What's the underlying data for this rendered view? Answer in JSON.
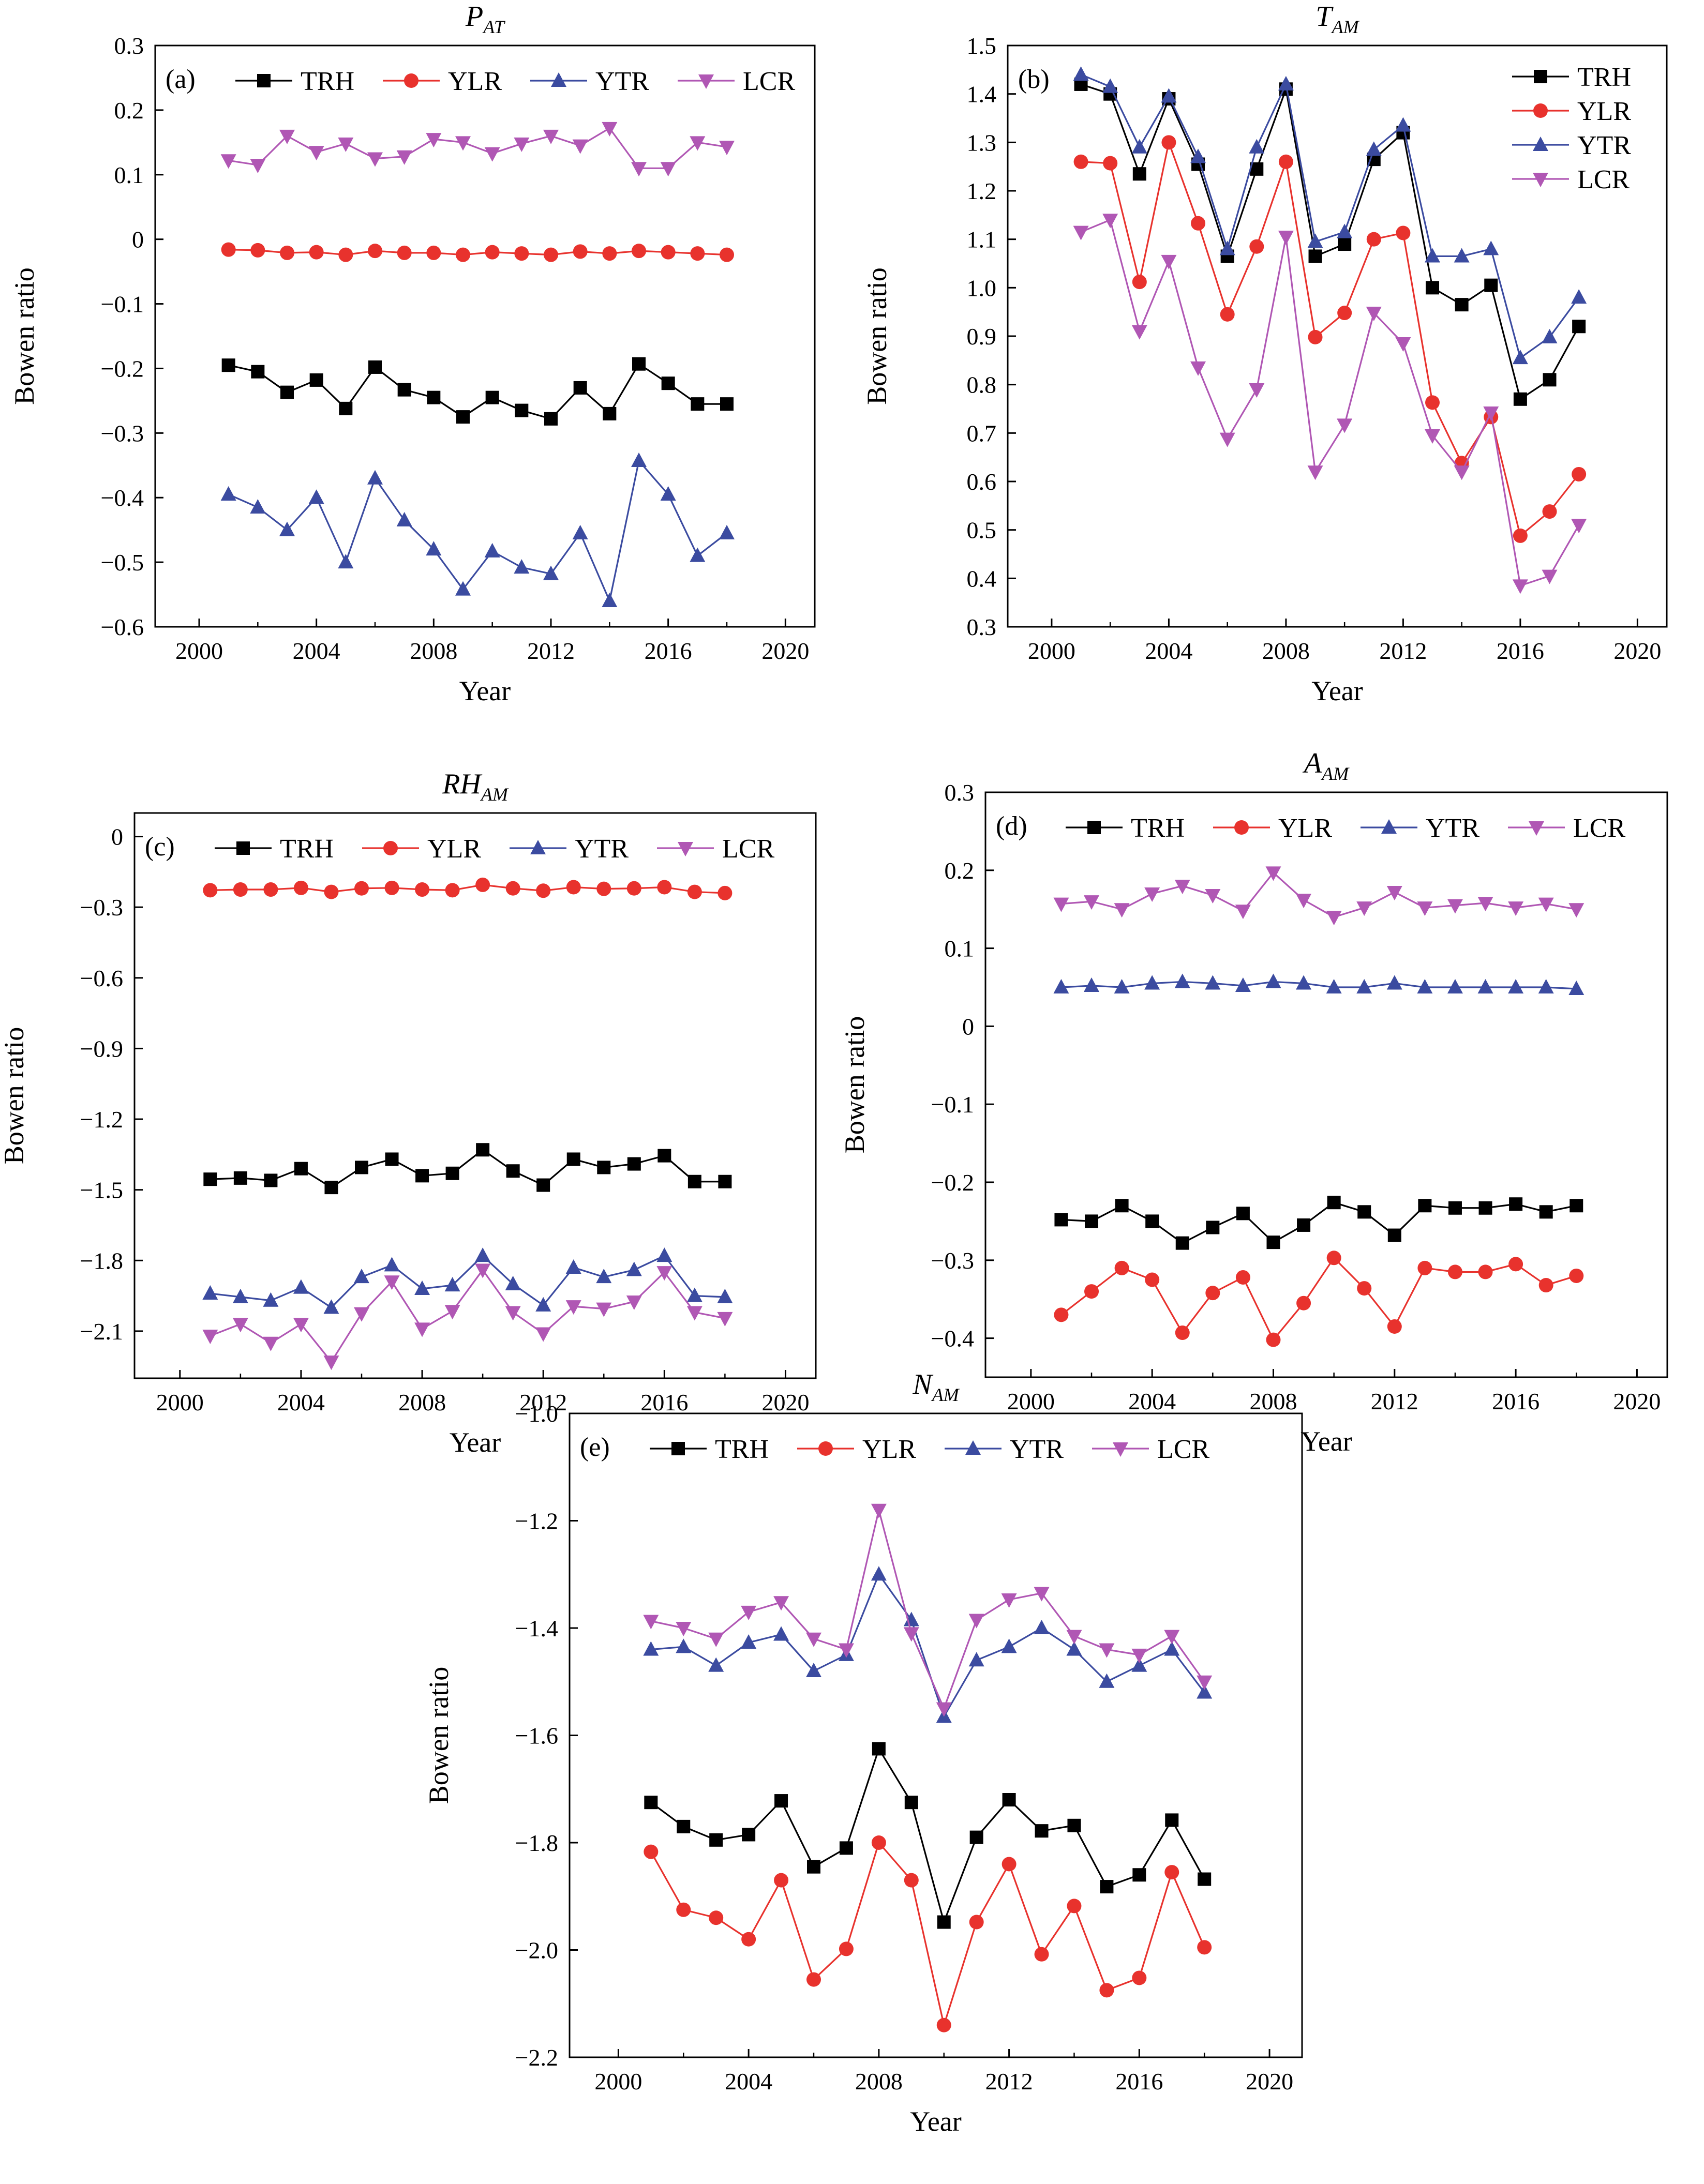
{
  "styles": {
    "TRH": {
      "color": "#000000",
      "marker": "square"
    },
    "YLR": {
      "color": "#e8322d",
      "marker": "circle"
    },
    "YTR": {
      "color": "#3b4ba0",
      "marker": "triangle-up"
    },
    "LCR": {
      "color": "#b057b4",
      "marker": "triangle-down"
    }
  },
  "chart_data": [
    {
      "type": "line",
      "panel_label": "(a)",
      "title_main": "P",
      "title_sub": "AT",
      "xlabel": "Year",
      "ylabel": "Bowen ratio",
      "xlim": [
        1998.5,
        2021
      ],
      "ylim": [
        -0.6,
        0.3
      ],
      "xticks": [
        2000,
        2004,
        2008,
        2012,
        2016,
        2020
      ],
      "yticks": [
        -0.6,
        -0.5,
        -0.4,
        -0.3,
        -0.2,
        -0.1,
        0,
        0.1,
        0.2,
        0.3
      ],
      "ytick_labels": [
        "−0.6",
        "−0.5",
        "−0.4",
        "−0.3",
        "−0.2",
        "−0.1",
        "0",
        "0.1",
        "0.2",
        "0.3"
      ],
      "legend_layout": "row",
      "legend_position": "top",
      "x": [
        2001,
        2002,
        2003,
        2004,
        2005,
        2006,
        2007,
        2008,
        2009,
        2010,
        2011,
        2012,
        2013,
        2014,
        2015,
        2016,
        2017,
        2018
      ],
      "series": [
        {
          "name": "TRH",
          "values": [
            -0.195,
            -0.205,
            -0.237,
            -0.218,
            -0.262,
            -0.198,
            -0.233,
            -0.245,
            -0.275,
            -0.245,
            -0.265,
            -0.278,
            -0.23,
            -0.27,
            -0.193,
            -0.223,
            -0.255,
            -0.255
          ]
        },
        {
          "name": "YLR",
          "values": [
            -0.016,
            -0.017,
            -0.021,
            -0.02,
            -0.024,
            -0.018,
            -0.021,
            -0.021,
            -0.024,
            -0.02,
            -0.022,
            -0.024,
            -0.019,
            -0.022,
            -0.018,
            -0.02,
            -0.022,
            -0.024
          ]
        },
        {
          "name": "YTR",
          "values": [
            -0.395,
            -0.415,
            -0.45,
            -0.4,
            -0.5,
            -0.37,
            -0.435,
            -0.48,
            -0.542,
            -0.483,
            -0.508,
            -0.518,
            -0.455,
            -0.56,
            -0.343,
            -0.395,
            -0.49,
            -0.455
          ]
        },
        {
          "name": "LCR",
          "values": [
            0.122,
            0.115,
            0.16,
            0.135,
            0.148,
            0.125,
            0.128,
            0.155,
            0.15,
            0.133,
            0.148,
            0.16,
            0.145,
            0.172,
            0.11,
            0.11,
            0.15,
            0.143
          ]
        }
      ]
    },
    {
      "type": "line",
      "panel_label": "(b)",
      "title_main": "T",
      "title_sub": "AM",
      "xlabel": "Year",
      "ylabel": "Bowen ratio",
      "xlim": [
        1998.5,
        2021
      ],
      "ylim": [
        0.3,
        1.5
      ],
      "xticks": [
        2000,
        2004,
        2008,
        2012,
        2016,
        2020
      ],
      "yticks": [
        0.3,
        0.4,
        0.5,
        0.6,
        0.7,
        0.8,
        0.9,
        1.0,
        1.1,
        1.2,
        1.3,
        1.4,
        1.5
      ],
      "ytick_labels": [
        "0.3",
        "0.4",
        "0.5",
        "0.6",
        "0.7",
        "0.8",
        "0.9",
        "1.0",
        "1.1",
        "1.2",
        "1.3",
        "1.4",
        "1.5"
      ],
      "legend_layout": "column",
      "legend_position": "top-right",
      "x": [
        2001,
        2002,
        2003,
        2004,
        2005,
        2006,
        2007,
        2008,
        2009,
        2010,
        2011,
        2012,
        2013,
        2014,
        2015,
        2016,
        2017,
        2018
      ],
      "series": [
        {
          "name": "TRH",
          "values": [
            1.42,
            1.4,
            1.235,
            1.39,
            1.255,
            1.065,
            1.245,
            1.41,
            1.065,
            1.09,
            1.265,
            1.32,
            1.0,
            0.965,
            1.005,
            0.77,
            0.81,
            0.92
          ]
        },
        {
          "name": "YLR",
          "values": [
            1.26,
            1.257,
            1.012,
            1.3,
            1.133,
            0.945,
            1.085,
            1.26,
            0.898,
            0.948,
            1.1,
            1.113,
            0.763,
            0.638,
            0.733,
            0.488,
            0.538,
            0.615
          ]
        },
        {
          "name": "YTR",
          "values": [
            1.44,
            1.415,
            1.29,
            1.395,
            1.27,
            1.08,
            1.29,
            1.42,
            1.095,
            1.115,
            1.285,
            1.335,
            1.065,
            1.065,
            1.08,
            0.855,
            0.898,
            0.98
          ]
        },
        {
          "name": "LCR",
          "values": [
            1.115,
            1.14,
            0.91,
            1.055,
            0.835,
            0.688,
            0.79,
            1.105,
            0.62,
            0.717,
            0.948,
            0.885,
            0.695,
            0.62,
            0.742,
            0.385,
            0.405,
            0.51
          ]
        }
      ]
    },
    {
      "type": "line",
      "panel_label": "(c)",
      "title_main": "RH",
      "title_sub": "AM",
      "xlabel": "Year",
      "ylabel": "Bowen ratio",
      "xlim": [
        1998.5,
        2021
      ],
      "ylim": [
        -2.3,
        0.1
      ],
      "xticks": [
        2000,
        2004,
        2008,
        2012,
        2016,
        2020
      ],
      "yticks": [
        0,
        -0.3,
        -0.6,
        -0.9,
        -1.2,
        -1.5,
        -1.8,
        -2.1
      ],
      "ytick_labels": [
        "0",
        "−0.3",
        "−0.6",
        "−0.9",
        "−1.2",
        "−1.5",
        "−1.8",
        "−2.1"
      ],
      "legend_layout": "row",
      "legend_position": "top",
      "x": [
        2001,
        2002,
        2003,
        2004,
        2005,
        2006,
        2007,
        2008,
        2009,
        2010,
        2011,
        2012,
        2013,
        2014,
        2015,
        2016,
        2017,
        2018
      ],
      "series": [
        {
          "name": "TRH",
          "values": [
            -1.455,
            -1.45,
            -1.46,
            -1.41,
            -1.49,
            -1.405,
            -1.37,
            -1.44,
            -1.43,
            -1.33,
            -1.42,
            -1.48,
            -1.37,
            -1.405,
            -1.39,
            -1.355,
            -1.465,
            -1.465
          ]
        },
        {
          "name": "YLR",
          "values": [
            -0.228,
            -0.225,
            -0.225,
            -0.218,
            -0.235,
            -0.22,
            -0.218,
            -0.225,
            -0.228,
            -0.205,
            -0.22,
            -0.23,
            -0.215,
            -0.222,
            -0.22,
            -0.215,
            -0.235,
            -0.24
          ]
        },
        {
          "name": "YTR",
          "values": [
            -1.94,
            -1.955,
            -1.97,
            -1.915,
            -2.0,
            -1.87,
            -1.82,
            -1.92,
            -1.905,
            -1.78,
            -1.9,
            -1.99,
            -1.83,
            -1.87,
            -1.84,
            -1.78,
            -1.95,
            -1.955
          ]
        },
        {
          "name": "LCR",
          "values": [
            -2.12,
            -2.07,
            -2.15,
            -2.07,
            -2.23,
            -2.025,
            -1.89,
            -2.09,
            -2.015,
            -1.84,
            -2.02,
            -2.11,
            -1.995,
            -2.005,
            -1.975,
            -1.85,
            -2.02,
            -2.045
          ]
        }
      ]
    },
    {
      "type": "line",
      "panel_label": "(d)",
      "title_main": "A",
      "title_sub": "AM",
      "xlabel": "Year",
      "ylabel": "Bowen ratio",
      "xlim": [
        1998.5,
        2021
      ],
      "ylim": [
        -0.45,
        0.3
      ],
      "xticks": [
        2000,
        2004,
        2008,
        2012,
        2016,
        2020
      ],
      "yticks": [
        -0.4,
        -0.3,
        -0.2,
        -0.1,
        0,
        0.1,
        0.2,
        0.3
      ],
      "ytick_labels": [
        "−0.4",
        "−0.3",
        "−0.2",
        "−0.1",
        "0",
        "0.1",
        "0.2",
        "0.3"
      ],
      "legend_layout": "row",
      "legend_position": "top",
      "x": [
        2001,
        2002,
        2003,
        2004,
        2005,
        2006,
        2007,
        2008,
        2009,
        2010,
        2011,
        2012,
        2013,
        2014,
        2015,
        2016,
        2017,
        2018
      ],
      "series": [
        {
          "name": "TRH",
          "values": [
            -0.248,
            -0.25,
            -0.23,
            -0.25,
            -0.278,
            -0.258,
            -0.24,
            -0.277,
            -0.255,
            -0.226,
            -0.238,
            -0.268,
            -0.23,
            -0.233,
            -0.233,
            -0.228,
            -0.238,
            -0.23
          ]
        },
        {
          "name": "YLR",
          "values": [
            -0.37,
            -0.34,
            -0.31,
            -0.325,
            -0.393,
            -0.342,
            -0.322,
            -0.402,
            -0.355,
            -0.297,
            -0.336,
            -0.385,
            -0.31,
            -0.315,
            -0.315,
            -0.305,
            -0.332,
            -0.32
          ]
        },
        {
          "name": "YTR",
          "values": [
            0.05,
            0.052,
            0.05,
            0.055,
            0.057,
            0.055,
            0.052,
            0.057,
            0.055,
            0.05,
            0.05,
            0.055,
            0.05,
            0.05,
            0.05,
            0.05,
            0.05,
            0.048
          ]
        },
        {
          "name": "LCR",
          "values": [
            0.157,
            0.16,
            0.15,
            0.17,
            0.18,
            0.168,
            0.148,
            0.197,
            0.162,
            0.14,
            0.152,
            0.172,
            0.152,
            0.155,
            0.158,
            0.152,
            0.157,
            0.15
          ]
        }
      ]
    },
    {
      "type": "line",
      "panel_label": "(e)",
      "title_main": "N",
      "title_sub": "AM",
      "xlabel": "Year",
      "ylabel": "Bowen ratio",
      "xlim": [
        1998.5,
        2021
      ],
      "ylim": [
        -2.2,
        -1.0
      ],
      "xticks": [
        2000,
        2004,
        2008,
        2012,
        2016,
        2020
      ],
      "yticks": [
        -2.2,
        -2.0,
        -1.8,
        -1.6,
        -1.4,
        -1.2,
        -1.0
      ],
      "ytick_labels": [
        "−2.2",
        "−2.0",
        "−1.8",
        "−1.6",
        "−1.4",
        "−1.2",
        "−1.0"
      ],
      "legend_layout": "row",
      "legend_position": "top",
      "x": [
        2001,
        2002,
        2003,
        2004,
        2005,
        2006,
        2007,
        2008,
        2009,
        2010,
        2011,
        2012,
        2013,
        2014,
        2015,
        2016,
        2017,
        2018
      ],
      "series": [
        {
          "name": "TRH",
          "values": [
            -1.725,
            -1.77,
            -1.795,
            -1.785,
            -1.722,
            -1.845,
            -1.81,
            -1.625,
            -1.725,
            -1.948,
            -1.79,
            -1.72,
            -1.778,
            -1.768,
            -1.882,
            -1.86,
            -1.758,
            -1.868
          ]
        },
        {
          "name": "YLR",
          "values": [
            -1.817,
            -1.925,
            -1.94,
            -1.98,
            -1.87,
            -2.055,
            -1.998,
            -1.8,
            -1.87,
            -2.14,
            -1.948,
            -1.84,
            -2.008,
            -1.918,
            -2.075,
            -2.052,
            -1.855,
            -1.995
          ]
        },
        {
          "name": "YTR",
          "values": [
            -1.44,
            -1.435,
            -1.47,
            -1.427,
            -1.412,
            -1.48,
            -1.45,
            -1.3,
            -1.385,
            -1.565,
            -1.46,
            -1.435,
            -1.4,
            -1.44,
            -1.5,
            -1.47,
            -1.44,
            -1.52
          ]
        },
        {
          "name": "LCR",
          "values": [
            -1.387,
            -1.4,
            -1.42,
            -1.37,
            -1.352,
            -1.42,
            -1.44,
            -1.18,
            -1.41,
            -1.55,
            -1.385,
            -1.347,
            -1.335,
            -1.415,
            -1.44,
            -1.45,
            -1.415,
            -1.5
          ]
        }
      ]
    }
  ]
}
